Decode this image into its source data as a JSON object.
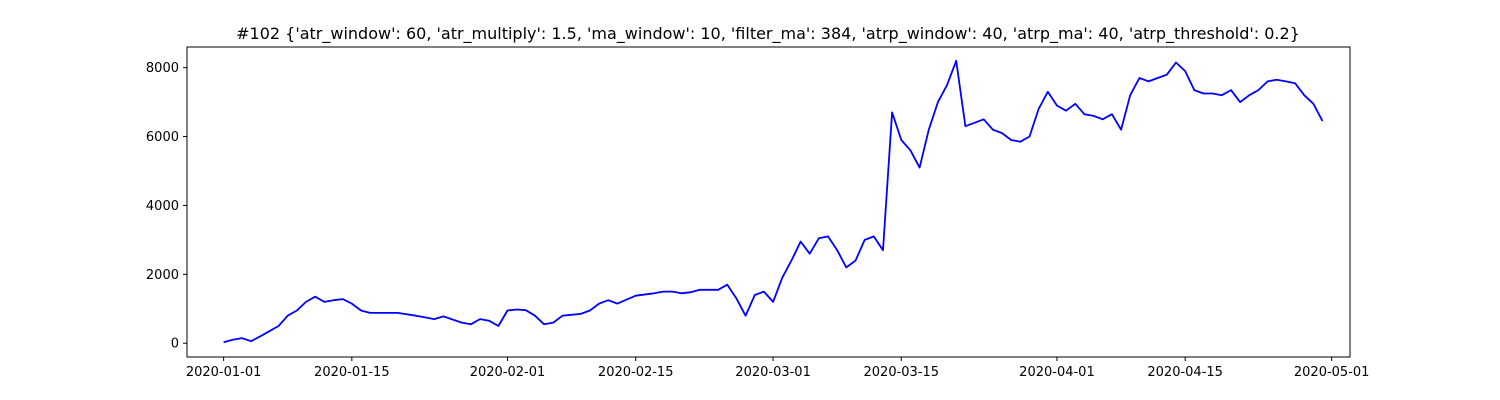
{
  "chart_data": {
    "type": "line",
    "title": "#102 {'atr_window': 60, 'atr_multiply': 1.5, 'ma_window': 10, 'filter_ma': 384, 'atrp_window': 40, 'atrp_ma': 40, 'atrp_threshold': 0.2}",
    "xlabel": "",
    "ylabel": "",
    "x_axis": "date",
    "xlim": [
      "2019-12-28",
      "2020-05-03"
    ],
    "ylim": [
      -400,
      8600
    ],
    "grid": false,
    "x_ticks": [
      "2020-01-01",
      "2020-01-15",
      "2020-02-01",
      "2020-02-15",
      "2020-03-01",
      "2020-03-15",
      "2020-04-01",
      "2020-04-15",
      "2020-05-01"
    ],
    "y_ticks": [
      0,
      2000,
      4000,
      6000,
      8000
    ],
    "series": [
      {
        "color": "#0000ff",
        "x": [
          "2020-01-01",
          "2020-01-02",
          "2020-01-03",
          "2020-01-04",
          "2020-01-05",
          "2020-01-06",
          "2020-01-07",
          "2020-01-08",
          "2020-01-09",
          "2020-01-10",
          "2020-01-11",
          "2020-01-12",
          "2020-01-13",
          "2020-01-14",
          "2020-01-15",
          "2020-01-16",
          "2020-01-17",
          "2020-01-18",
          "2020-01-20",
          "2020-01-22",
          "2020-01-23",
          "2020-01-24",
          "2020-01-25",
          "2020-01-27",
          "2020-01-28",
          "2020-01-29",
          "2020-01-30",
          "2020-01-31",
          "2020-02-01",
          "2020-02-02",
          "2020-02-03",
          "2020-02-04",
          "2020-02-05",
          "2020-02-06",
          "2020-02-07",
          "2020-02-09",
          "2020-02-10",
          "2020-02-11",
          "2020-02-12",
          "2020-02-13",
          "2020-02-15",
          "2020-02-17",
          "2020-02-18",
          "2020-02-19",
          "2020-02-20",
          "2020-02-21",
          "2020-02-22",
          "2020-02-24",
          "2020-02-25",
          "2020-02-26",
          "2020-02-27",
          "2020-02-28",
          "2020-02-29",
          "2020-03-01",
          "2020-03-02",
          "2020-03-03",
          "2020-03-04",
          "2020-03-05",
          "2020-03-06",
          "2020-03-07",
          "2020-03-08",
          "2020-03-09",
          "2020-03-10",
          "2020-03-11",
          "2020-03-12",
          "2020-03-13",
          "2020-03-14",
          "2020-03-15",
          "2020-03-16",
          "2020-03-17",
          "2020-03-18",
          "2020-03-19",
          "2020-03-20",
          "2020-03-21",
          "2020-03-22",
          "2020-03-23",
          "2020-03-24",
          "2020-03-25",
          "2020-03-26",
          "2020-03-27",
          "2020-03-28",
          "2020-03-29",
          "2020-03-30",
          "2020-03-31",
          "2020-04-01",
          "2020-04-02",
          "2020-04-03",
          "2020-04-04",
          "2020-04-05",
          "2020-04-06",
          "2020-04-07",
          "2020-04-08",
          "2020-04-09",
          "2020-04-10",
          "2020-04-11",
          "2020-04-13",
          "2020-04-14",
          "2020-04-15",
          "2020-04-16",
          "2020-04-17",
          "2020-04-18",
          "2020-04-19",
          "2020-04-20",
          "2020-04-21",
          "2020-04-22",
          "2020-04-23",
          "2020-04-24",
          "2020-04-25",
          "2020-04-26",
          "2020-04-27",
          "2020-04-28",
          "2020-04-29",
          "2020-04-30"
        ],
        "values": [
          30,
          100,
          150,
          60,
          200,
          350,
          500,
          800,
          950,
          1200,
          1350,
          1200,
          1250,
          1280,
          1150,
          950,
          880,
          880,
          880,
          800,
          750,
          700,
          780,
          600,
          550,
          700,
          650,
          500,
          950,
          980,
          960,
          800,
          550,
          600,
          800,
          850,
          950,
          1150,
          1250,
          1150,
          1380,
          1450,
          1500,
          1500,
          1450,
          1480,
          1550,
          1550,
          1700,
          1300,
          800,
          1400,
          1500,
          1200,
          1900,
          2400,
          2950,
          2600,
          3050,
          3100,
          2700,
          2200,
          2400,
          3000,
          3100,
          2700,
          6700,
          5900,
          5600,
          5100,
          6200,
          7000,
          7500,
          8200,
          6300,
          6400,
          6500,
          6200,
          6100,
          5900,
          5850,
          6000,
          6800,
          7300,
          6900,
          6750,
          6950,
          6650,
          6600,
          6500,
          6650,
          6200,
          7200,
          7700,
          7600,
          7800,
          8150,
          7900,
          7350,
          7250,
          7250,
          7200,
          7350,
          7000,
          7200,
          7350,
          7600,
          7650,
          7600,
          7550,
          7200,
          6950,
          6450
        ]
      }
    ]
  }
}
